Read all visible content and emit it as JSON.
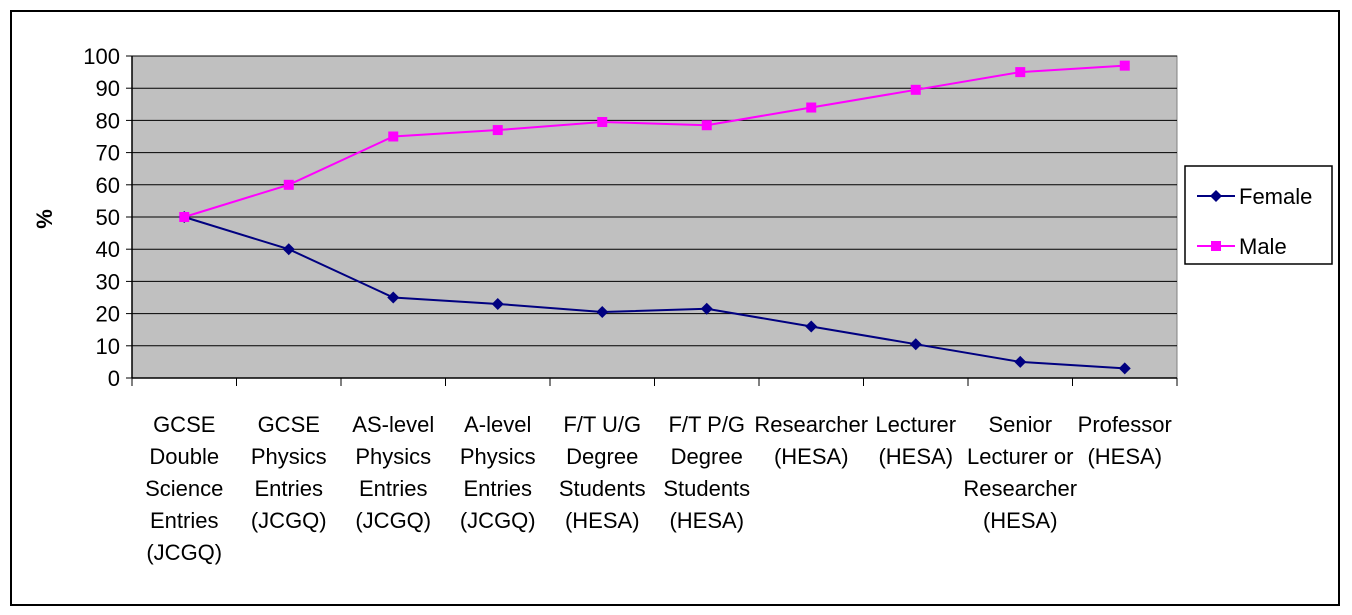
{
  "chart_data": {
    "type": "line",
    "title": "",
    "xlabel": "",
    "ylabel": "%",
    "ylim": [
      0,
      100
    ],
    "yticks": [
      0,
      10,
      20,
      30,
      40,
      50,
      60,
      70,
      80,
      90,
      100
    ],
    "grid": true,
    "legend": "right",
    "plot_background": "#C0C0C0",
    "categories": [
      [
        "GCSE",
        "Double",
        "Science",
        "Entries",
        "(JCGQ)"
      ],
      [
        "GCSE",
        "Physics",
        "Entries",
        "(JCGQ)"
      ],
      [
        "AS-level",
        "Physics",
        "Entries",
        "(JCGQ)"
      ],
      [
        "A-level",
        "Physics",
        "Entries",
        "(JCGQ)"
      ],
      [
        "F/T U/G",
        "Degree",
        "Students",
        "(HESA)"
      ],
      [
        "F/T P/G",
        "Degree",
        "Students",
        "(HESA)"
      ],
      [
        "Researcher",
        "(HESA)"
      ],
      [
        "Lecturer",
        "(HESA)"
      ],
      [
        "Senior",
        "Lecturer or",
        "Researcher",
        "(HESA)"
      ],
      [
        "Professor",
        "(HESA)"
      ]
    ],
    "series": [
      {
        "name": "Female",
        "color": "#000080",
        "marker": "diamond",
        "values": [
          50,
          40,
          25,
          23,
          20.5,
          21.5,
          16,
          10.5,
          5,
          3
        ]
      },
      {
        "name": "Male",
        "color": "#FF00FF",
        "marker": "square",
        "values": [
          50,
          60,
          75,
          77,
          79.5,
          78.5,
          84,
          89.5,
          95,
          97
        ]
      }
    ]
  }
}
